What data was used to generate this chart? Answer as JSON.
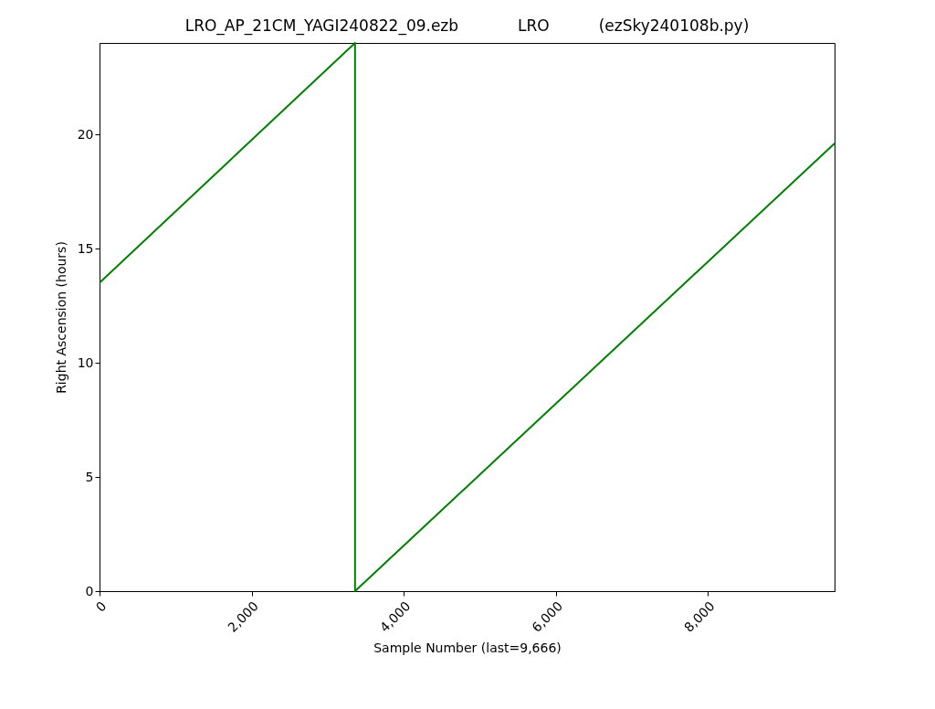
{
  "chart_data": {
    "type": "line",
    "title": "LRO_AP_21CM_YAGI240822_09.ezb            LRO          (ezSky240108b.py)",
    "xlabel": "Sample Number (last=9,666)",
    "ylabel": "Right Ascension (hours)",
    "x": [
      0,
      3360,
      3360,
      9666
    ],
    "series": [
      {
        "color": "#008000",
        "values": [
          13.5,
          24,
          0,
          19.6
        ]
      }
    ],
    "xlim": [
      0,
      9666
    ],
    "xticks": [
      {
        "value": 0,
        "label": "0"
      },
      {
        "value": 2000,
        "label": "2,000"
      },
      {
        "value": 4000,
        "label": "4,000"
      },
      {
        "value": 6000,
        "label": "6,000"
      },
      {
        "value": 8000,
        "label": "8,000"
      }
    ],
    "ylim": [
      0,
      24
    ],
    "yticks": [
      0,
      5,
      10,
      15,
      20
    ],
    "grid": false
  }
}
